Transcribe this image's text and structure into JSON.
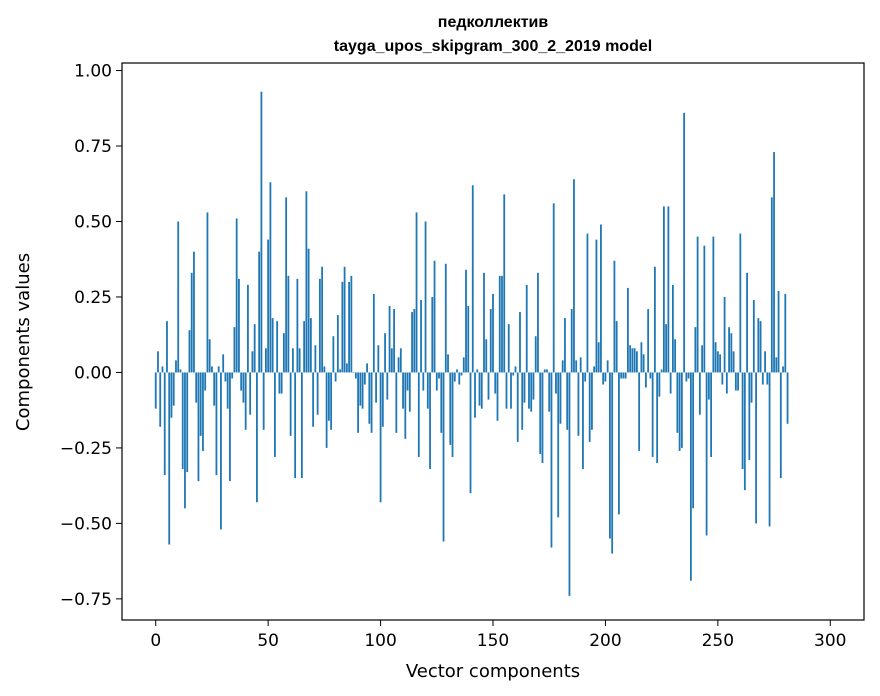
{
  "chart_data": {
    "type": "bar",
    "title": "педколлектив",
    "subtitle": "tayga_upos_skipgram_300_2_2019 model",
    "xlabel": "Vector components",
    "ylabel": "Components values",
    "xlim": [
      -15,
      315
    ],
    "ylim": [
      -0.82,
      1.025
    ],
    "xticks": [
      0,
      50,
      100,
      150,
      200,
      250,
      300
    ],
    "yticks": [
      -0.75,
      -0.5,
      -0.25,
      0.0,
      0.25,
      0.5,
      0.75,
      1.0
    ],
    "ytick_labels": [
      "−0.75",
      "−0.50",
      "−0.25",
      "0.00",
      "0.25",
      "0.50",
      "0.75",
      "1.00"
    ],
    "bar_color": "#1f77b4",
    "grid": false,
    "values": [
      -0.12,
      0.07,
      -0.18,
      0.02,
      -0.34,
      0.17,
      -0.57,
      -0.15,
      -0.11,
      0.04,
      0.5,
      0.01,
      -0.32,
      -0.45,
      -0.33,
      0.14,
      0.33,
      0.4,
      -0.1,
      -0.36,
      -0.21,
      -0.26,
      -0.06,
      0.53,
      0.11,
      0.02,
      -0.11,
      -0.34,
      0.02,
      -0.52,
      0.06,
      -0.03,
      -0.12,
      -0.36,
      -0.02,
      0.15,
      0.51,
      0.31,
      -0.06,
      -0.1,
      -0.19,
      0.29,
      -0.14,
      0.07,
      0.16,
      -0.43,
      0.4,
      0.93,
      -0.19,
      0.08,
      0.44,
      0.63,
      0.18,
      -0.28,
      0.17,
      -0.07,
      -0.07,
      0.13,
      0.58,
      0.32,
      -0.21,
      0.08,
      -0.35,
      0.31,
      0.08,
      -0.35,
      0.17,
      0.6,
      0.41,
      0.18,
      -0.18,
      0.09,
      -0.14,
      0.31,
      0.35,
      0.02,
      -0.25,
      -0.16,
      -0.19,
      0.12,
      -0.03,
      0.19,
      0.01,
      0.3,
      0.35,
      0.03,
      0.3,
      0.32,
      0.0,
      -0.02,
      -0.2,
      -0.11,
      -0.12,
      -0.04,
      0.03,
      -0.17,
      -0.2,
      0.26,
      -0.1,
      0.09,
      -0.43,
      -0.18,
      0.13,
      -0.09,
      0.22,
      0.08,
      0.21,
      -0.2,
      0.05,
      0.08,
      -0.12,
      -0.22,
      -0.06,
      -0.13,
      0.2,
      0.21,
      0.53,
      -0.28,
      0.24,
      -0.06,
      0.5,
      -0.12,
      -0.32,
      0.25,
      0.37,
      -0.06,
      -0.02,
      -0.2,
      -0.56,
      0.36,
      0.06,
      -0.24,
      -0.28,
      -0.03,
      0.01,
      -0.04,
      -0.01,
      0.05,
      0.34,
      0.22,
      -0.4,
      0.62,
      -0.15,
      0.01,
      -0.11,
      -0.12,
      0.33,
      0.11,
      -0.09,
      0.21,
      0.26,
      -0.07,
      -0.16,
      0.32,
      0.32,
      0.59,
      -0.12,
      0.16,
      -0.12,
      -0.01,
      0.02,
      -0.23,
      0.2,
      -0.19,
      -0.1,
      0.29,
      -0.12,
      -0.13,
      -0.09,
      0.12,
      0.33,
      -0.27,
      -0.3,
      0.01,
      0.01,
      -0.13,
      -0.58,
      0.56,
      -0.07,
      -0.48,
      -0.17,
      0.04,
      0.18,
      -0.19,
      -0.74,
      0.21,
      0.64,
      0.04,
      -0.21,
      0.05,
      -0.32,
      -0.03,
      0.46,
      -0.23,
      -0.19,
      0.02,
      0.44,
      0.1,
      0.49,
      -0.04,
      -0.03,
      0.04,
      -0.55,
      -0.6,
      0.37,
      0.17,
      -0.47,
      -0.02,
      -0.02,
      -0.02,
      0.28,
      0.09,
      0.08,
      0.08,
      0.07,
      -0.26,
      0.1,
      0.06,
      -0.05,
      0.21,
      -0.02,
      -0.28,
      0.35,
      -0.3,
      -0.08,
      0.01,
      0.55,
      0.16,
      0.55,
      -0.07,
      0.29,
      0.11,
      -0.2,
      -0.26,
      -0.25,
      0.86,
      -0.03,
      -0.02,
      -0.69,
      -0.45,
      0.15,
      0.45,
      -0.14,
      0.09,
      0.42,
      -0.54,
      -0.09,
      -0.28,
      0.45,
      0.1,
      0.07,
      0.06,
      -0.04,
      0.25,
      -0.07,
      0.15,
      0.13,
      0.07,
      -0.06,
      -0.06,
      0.46,
      -0.32,
      -0.39,
      0.33,
      -0.29,
      -0.1,
      0.24,
      -0.5,
      0.18,
      0.17,
      -0.04,
      0.07,
      -0.04,
      -0.51,
      0.58,
      0.73,
      0.05,
      0.27,
      -0.35,
      0.02,
      0.26,
      -0.17
    ]
  }
}
